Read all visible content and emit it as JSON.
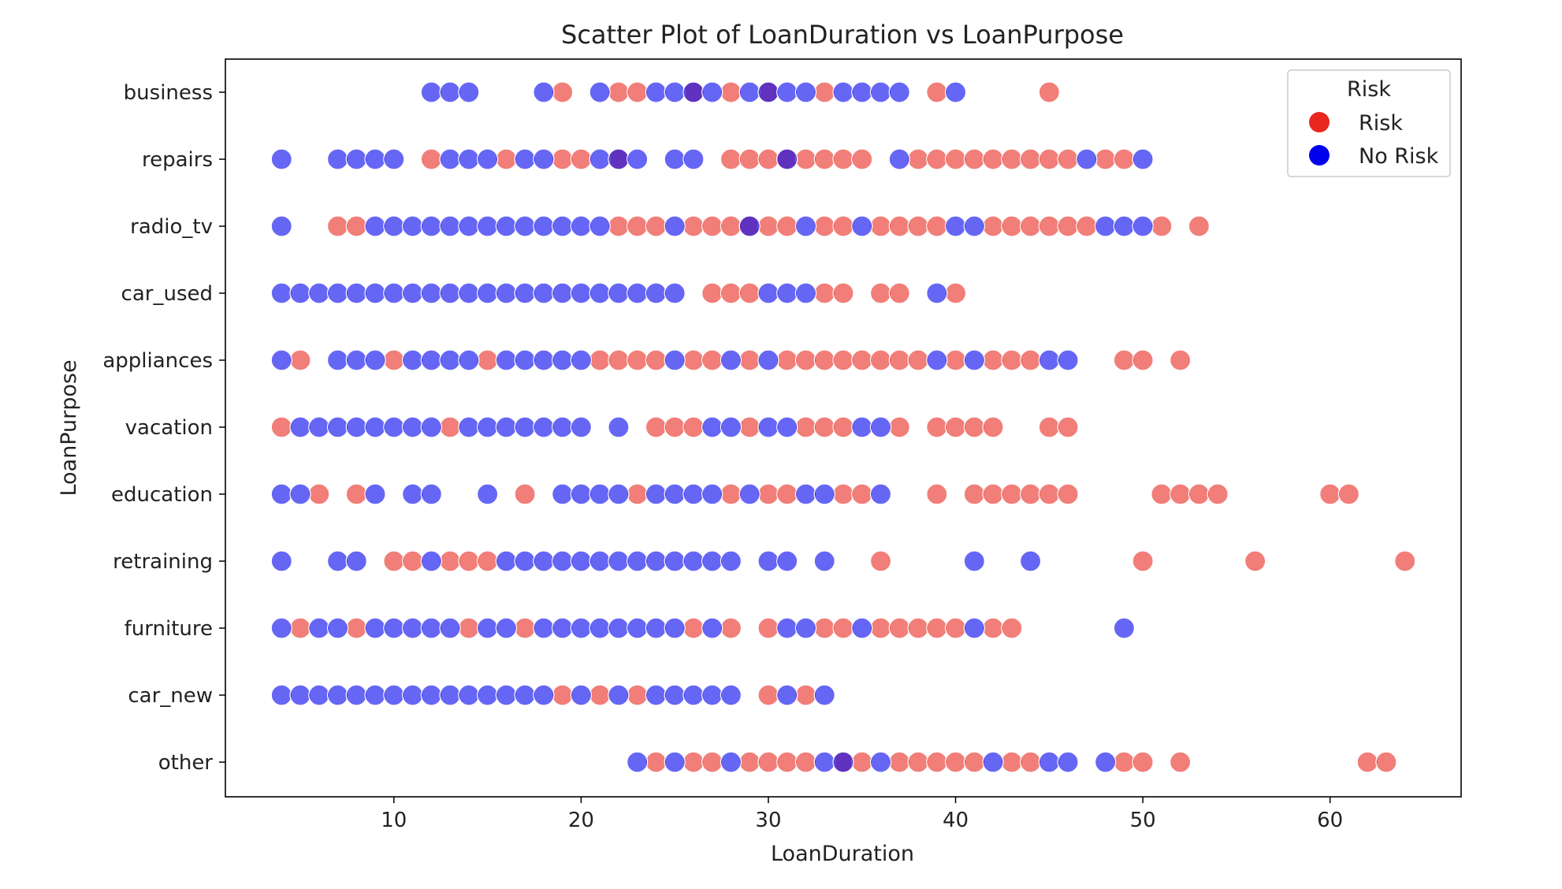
{
  "chart_data": {
    "type": "scatter",
    "title": "Scatter Plot of LoanDuration vs LoanPurpose",
    "xlabel": "LoanDuration",
    "ylabel": "LoanPurpose",
    "xlim": [
      1,
      67
    ],
    "xticks": [
      10,
      20,
      30,
      40,
      50,
      60
    ],
    "categories": [
      "business",
      "repairs",
      "radio_tv",
      "car_used",
      "appliances",
      "vacation",
      "education",
      "retraining",
      "furniture",
      "car_new",
      "other"
    ],
    "grid": false,
    "legend": {
      "title": "Risk",
      "position": "top-right",
      "entries": [
        "Risk",
        "No Risk"
      ]
    },
    "colors": {
      "Risk": "#e8281e",
      "No Risk": "#0000ee"
    },
    "series": [
      {
        "name": "Risk",
        "points": [
          {
            "y": "business",
            "x": [
              19,
              22,
              23,
              26,
              28,
              30,
              33,
              39,
              45
            ]
          },
          {
            "y": "repairs",
            "x": [
              12,
              16,
              19,
              20,
              22,
              28,
              29,
              30,
              31,
              32,
              33,
              34,
              35,
              38,
              39,
              40,
              41,
              42,
              43,
              44,
              45,
              46,
              48,
              49
            ]
          },
          {
            "y": "radio_tv",
            "x": [
              7,
              8,
              22,
              23,
              24,
              26,
              27,
              28,
              29,
              30,
              31,
              33,
              34,
              36,
              37,
              38,
              39,
              42,
              43,
              44,
              45,
              46,
              47,
              51,
              53
            ]
          },
          {
            "y": "car_used",
            "x": [
              27,
              28,
              29,
              33,
              34,
              36,
              37,
              40
            ]
          },
          {
            "y": "appliances",
            "x": [
              5,
              10,
              15,
              21,
              22,
              23,
              24,
              26,
              27,
              29,
              31,
              32,
              33,
              34,
              35,
              36,
              37,
              38,
              40,
              42,
              43,
              44,
              49,
              50,
              52
            ]
          },
          {
            "y": "vacation",
            "x": [
              4,
              13,
              24,
              25,
              26,
              29,
              32,
              33,
              34,
              37,
              39,
              40,
              41,
              42,
              45,
              46
            ]
          },
          {
            "y": "education",
            "x": [
              6,
              8,
              17,
              23,
              28,
              30,
              31,
              34,
              35,
              39,
              41,
              42,
              43,
              44,
              45,
              46,
              51,
              52,
              53,
              54,
              60,
              61
            ]
          },
          {
            "y": "retraining",
            "x": [
              10,
              11,
              13,
              14,
              15,
              36,
              50,
              56,
              64
            ]
          },
          {
            "y": "furniture",
            "x": [
              5,
              8,
              14,
              17,
              26,
              28,
              30,
              33,
              34,
              36,
              37,
              38,
              39,
              40,
              42,
              43
            ]
          },
          {
            "y": "car_new",
            "x": [
              19,
              21,
              23,
              30,
              32
            ]
          },
          {
            "y": "other",
            "x": [
              24,
              26,
              27,
              29,
              30,
              31,
              32,
              34,
              35,
              37,
              38,
              39,
              40,
              41,
              43,
              44,
              49,
              50,
              52,
              62,
              63
            ]
          }
        ]
      },
      {
        "name": "No Risk",
        "points": [
          {
            "y": "business",
            "x": [
              12,
              13,
              14,
              18,
              21,
              24,
              25,
              26,
              27,
              29,
              30,
              31,
              32,
              34,
              35,
              36,
              37,
              40
            ]
          },
          {
            "y": "repairs",
            "x": [
              4,
              7,
              8,
              9,
              10,
              13,
              14,
              15,
              17,
              18,
              21,
              22,
              23,
              25,
              26,
              31,
              37,
              47,
              50
            ]
          },
          {
            "y": "radio_tv",
            "x": [
              4,
              9,
              10,
              11,
              12,
              13,
              14,
              15,
              16,
              17,
              18,
              19,
              20,
              21,
              25,
              29,
              32,
              35,
              40,
              41,
              48,
              49,
              50
            ]
          },
          {
            "y": "car_used",
            "x": [
              4,
              5,
              6,
              7,
              8,
              9,
              10,
              11,
              12,
              13,
              14,
              15,
              16,
              17,
              18,
              19,
              20,
              21,
              22,
              23,
              24,
              25,
              30,
              31,
              32,
              39
            ]
          },
          {
            "y": "appliances",
            "x": [
              4,
              7,
              8,
              9,
              11,
              12,
              13,
              14,
              16,
              17,
              18,
              19,
              20,
              25,
              28,
              30,
              39,
              41,
              45,
              46
            ]
          },
          {
            "y": "vacation",
            "x": [
              5,
              6,
              7,
              8,
              9,
              10,
              11,
              12,
              14,
              15,
              16,
              17,
              18,
              19,
              20,
              22,
              27,
              28,
              30,
              31,
              35,
              36
            ]
          },
          {
            "y": "education",
            "x": [
              4,
              5,
              9,
              11,
              12,
              15,
              19,
              20,
              21,
              22,
              24,
              25,
              26,
              27,
              29,
              32,
              33,
              36
            ]
          },
          {
            "y": "retraining",
            "x": [
              4,
              7,
              8,
              12,
              16,
              17,
              18,
              19,
              20,
              21,
              22,
              23,
              24,
              25,
              26,
              27,
              28,
              30,
              31,
              33,
              41,
              44
            ]
          },
          {
            "y": "furniture",
            "x": [
              4,
              6,
              7,
              9,
              10,
              11,
              12,
              13,
              15,
              16,
              18,
              19,
              20,
              21,
              22,
              23,
              24,
              25,
              27,
              31,
              32,
              35,
              41,
              49
            ]
          },
          {
            "y": "car_new",
            "x": [
              4,
              5,
              6,
              7,
              8,
              9,
              10,
              11,
              12,
              13,
              14,
              15,
              16,
              17,
              18,
              20,
              22,
              24,
              25,
              26,
              27,
              28,
              31,
              33
            ]
          },
          {
            "y": "other",
            "x": [
              23,
              25,
              28,
              33,
              34,
              36,
              42,
              45,
              46,
              48
            ]
          }
        ]
      }
    ]
  }
}
